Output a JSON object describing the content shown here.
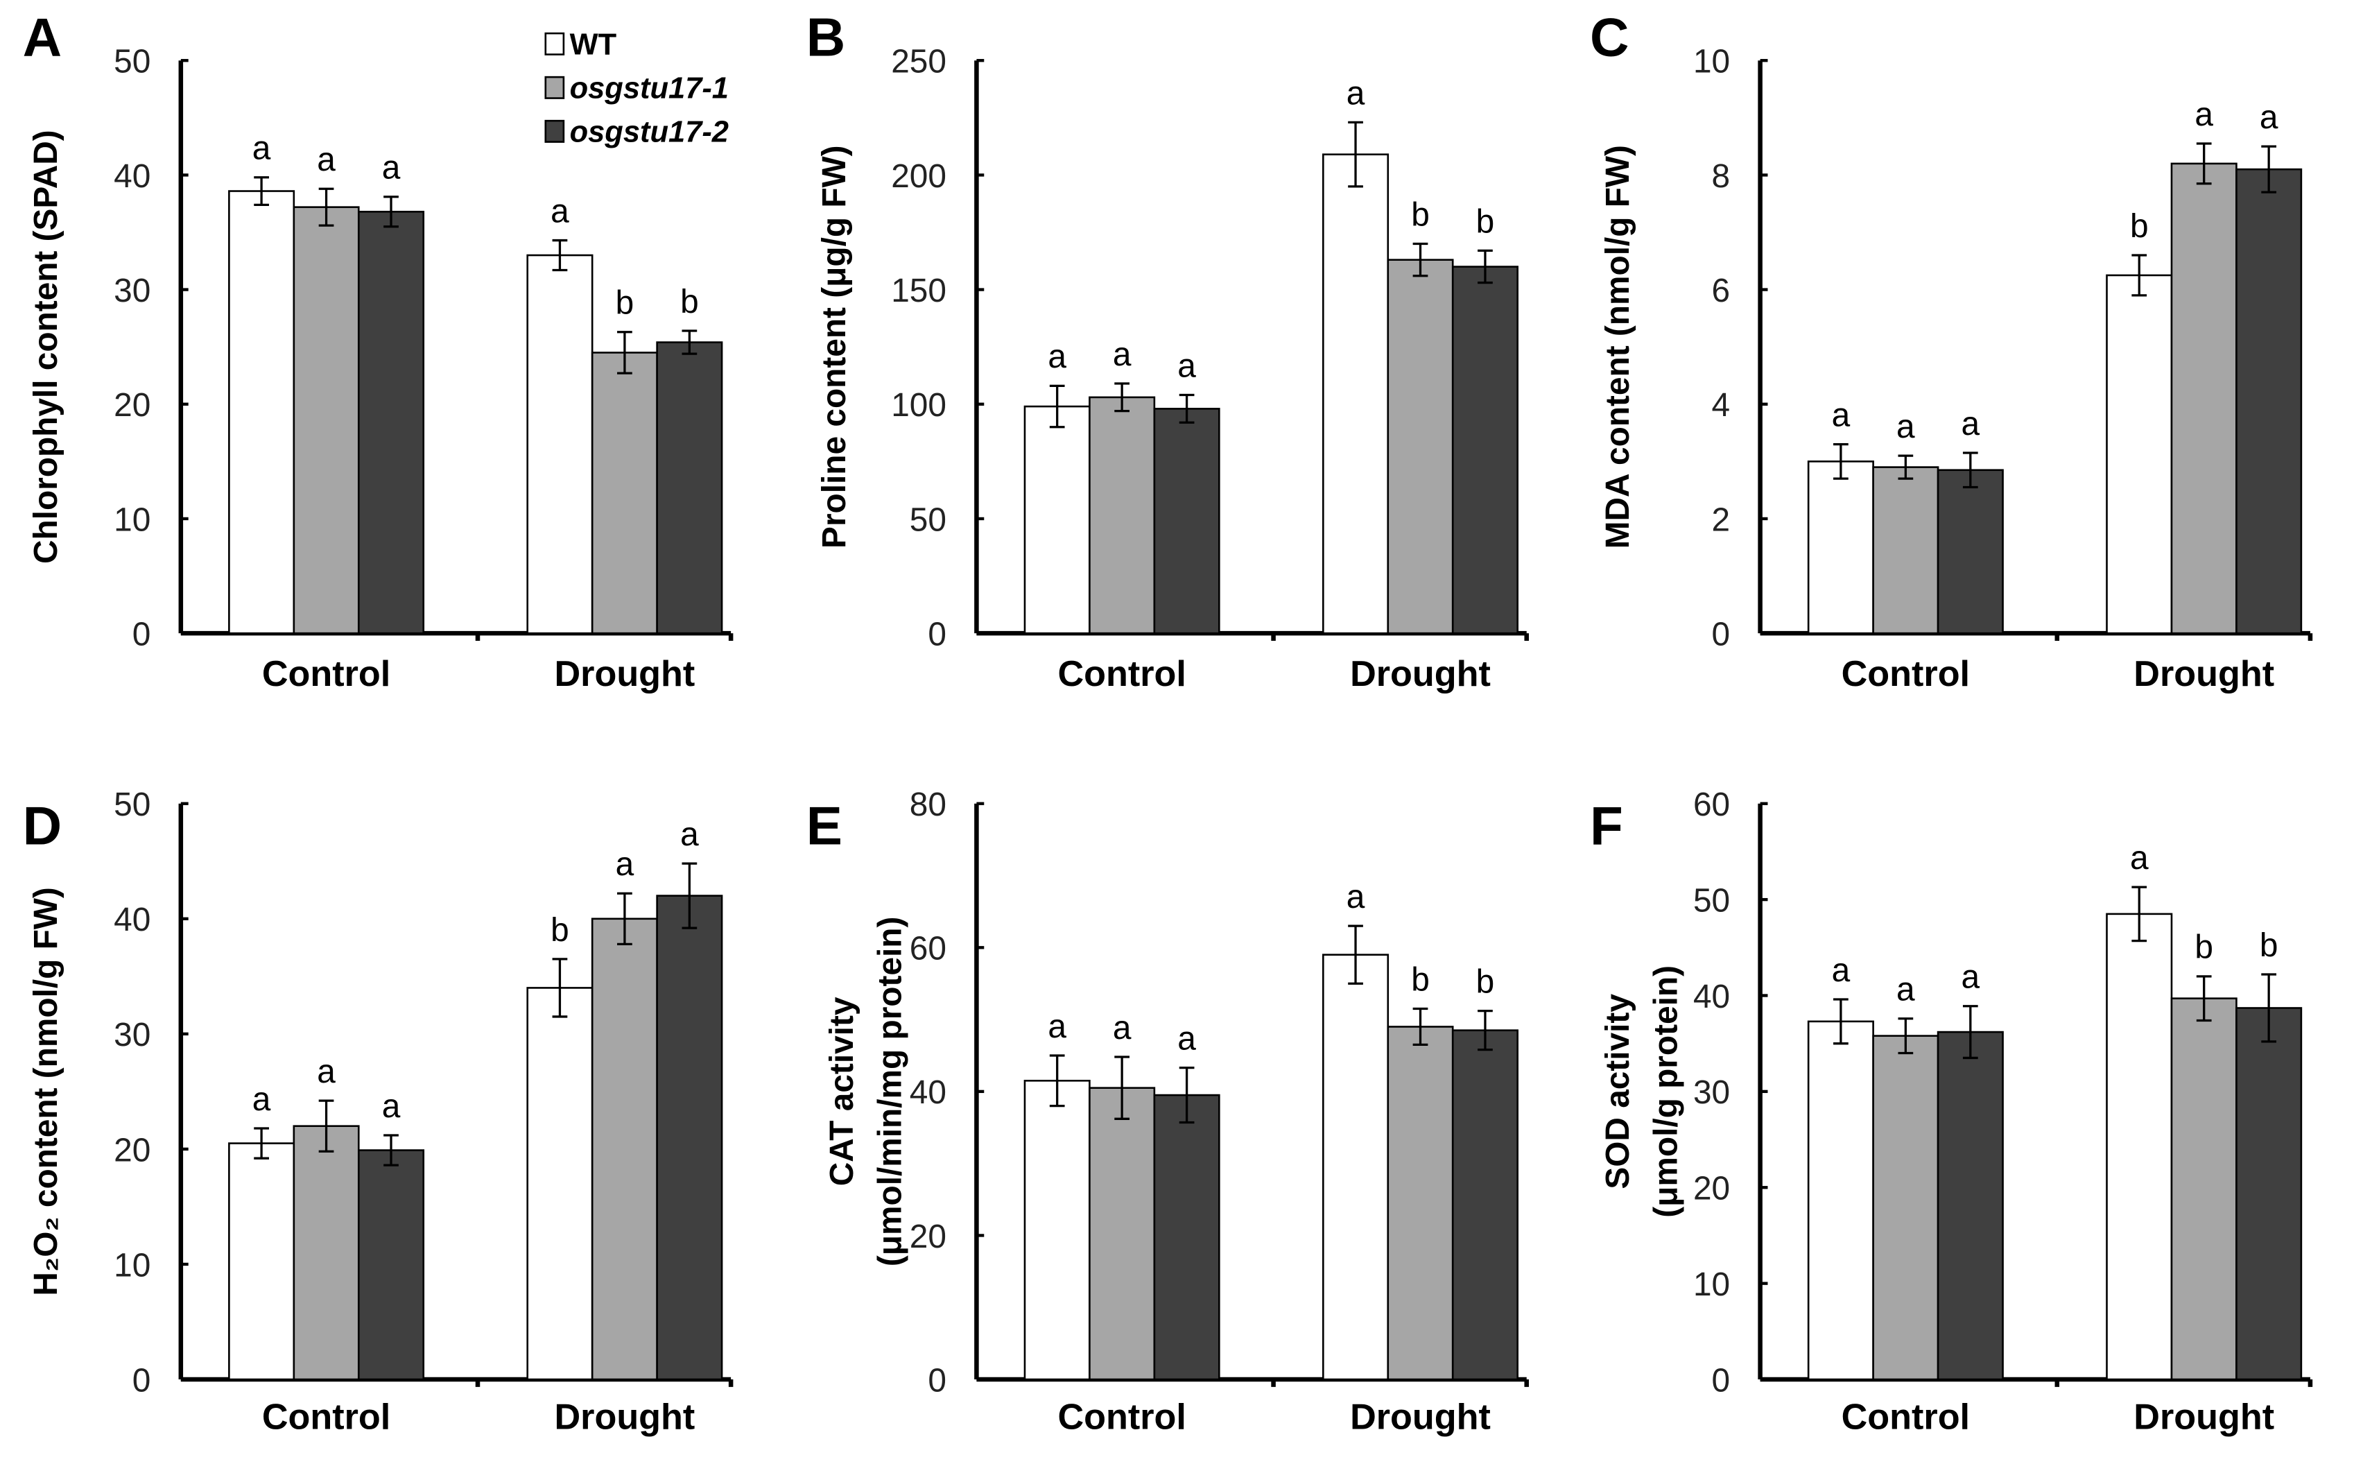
{
  "legend": [
    {
      "label": "WT",
      "color": "#ffffff"
    },
    {
      "label": "osgstu17-1",
      "color": "#a6a6a6"
    },
    {
      "label": "osgstu17-2",
      "color": "#404040"
    }
  ],
  "chart_data": [
    {
      "panel": "A",
      "type": "bar",
      "ylabel": [
        "Chlorophyll content (SPAD)"
      ],
      "ylim": [
        0,
        50
      ],
      "yticks": [
        0,
        10,
        20,
        30,
        40,
        50
      ],
      "categories": [
        "Control",
        "Drought"
      ],
      "series": [
        {
          "name": "WT",
          "values": [
            38.6,
            33.0
          ],
          "errors": [
            1.2,
            1.3
          ],
          "letters": [
            "a",
            "a"
          ]
        },
        {
          "name": "osgstu17-1",
          "values": [
            37.2,
            24.5
          ],
          "errors": [
            1.6,
            1.8
          ],
          "letters": [
            "a",
            "b"
          ]
        },
        {
          "name": "osgstu17-2",
          "values": [
            36.8,
            25.4
          ],
          "errors": [
            1.3,
            1.0
          ],
          "letters": [
            "a",
            "b"
          ]
        }
      ]
    },
    {
      "panel": "B",
      "type": "bar",
      "ylabel": [
        "Proline content (μg/g FW)"
      ],
      "ylim": [
        0,
        250
      ],
      "yticks": [
        0,
        50,
        100,
        150,
        200,
        250
      ],
      "categories": [
        "Control",
        "Drought"
      ],
      "series": [
        {
          "name": "WT",
          "values": [
            99,
            209
          ],
          "errors": [
            9,
            14
          ],
          "letters": [
            "a",
            "a"
          ]
        },
        {
          "name": "osgstu17-1",
          "values": [
            103,
            163
          ],
          "errors": [
            6,
            7
          ],
          "letters": [
            "a",
            "b"
          ]
        },
        {
          "name": "osgstu17-2",
          "values": [
            98,
            160
          ],
          "errors": [
            6,
            7
          ],
          "letters": [
            "a",
            "b"
          ]
        }
      ]
    },
    {
      "panel": "C",
      "type": "bar",
      "ylabel": [
        "MDA content (nmol/g FW)"
      ],
      "ylim": [
        0,
        10
      ],
      "yticks": [
        0,
        2,
        4,
        6,
        8,
        10
      ],
      "categories": [
        "Control",
        "Drought"
      ],
      "series": [
        {
          "name": "WT",
          "values": [
            3.0,
            6.25
          ],
          "errors": [
            0.3,
            0.35
          ],
          "letters": [
            "a",
            "b"
          ]
        },
        {
          "name": "osgstu17-1",
          "values": [
            2.9,
            8.2
          ],
          "errors": [
            0.2,
            0.35
          ],
          "letters": [
            "a",
            "a"
          ]
        },
        {
          "name": "osgstu17-2",
          "values": [
            2.85,
            8.1
          ],
          "errors": [
            0.3,
            0.4
          ],
          "letters": [
            "a",
            "a"
          ]
        }
      ]
    },
    {
      "panel": "D",
      "type": "bar",
      "ylabel": [
        "H₂O₂ content (nmol/g FW)"
      ],
      "ylim": [
        0,
        50
      ],
      "yticks": [
        0,
        10,
        20,
        30,
        40,
        50
      ],
      "categories": [
        "Control",
        "Drought"
      ],
      "series": [
        {
          "name": "WT",
          "values": [
            20.5,
            34.0
          ],
          "errors": [
            1.3,
            2.5
          ],
          "letters": [
            "a",
            "b"
          ]
        },
        {
          "name": "osgstu17-1",
          "values": [
            22.0,
            40.0
          ],
          "errors": [
            2.2,
            2.2
          ],
          "letters": [
            "a",
            "a"
          ]
        },
        {
          "name": "osgstu17-2",
          "values": [
            19.9,
            42.0
          ],
          "errors": [
            1.3,
            2.8
          ],
          "letters": [
            "a",
            "a"
          ]
        }
      ]
    },
    {
      "panel": "E",
      "type": "bar",
      "ylabel": [
        "CAT activity",
        "(μmol/min/mg protein)"
      ],
      "ylim": [
        0,
        80
      ],
      "yticks": [
        0,
        20,
        40,
        60,
        80
      ],
      "categories": [
        "Control",
        "Drought"
      ],
      "series": [
        {
          "name": "WT",
          "values": [
            41.5,
            59.0
          ],
          "errors": [
            3.5,
            4.0
          ],
          "letters": [
            "a",
            "a"
          ]
        },
        {
          "name": "osgstu17-1",
          "values": [
            40.5,
            49.0
          ],
          "errors": [
            4.3,
            2.5
          ],
          "letters": [
            "a",
            "b"
          ]
        },
        {
          "name": "osgstu17-2",
          "values": [
            39.5,
            48.5
          ],
          "errors": [
            3.8,
            2.7
          ],
          "letters": [
            "a",
            "b"
          ]
        }
      ]
    },
    {
      "panel": "F",
      "type": "bar",
      "ylabel": [
        "SOD activity",
        "(μmol/g protein)"
      ],
      "ylim": [
        0,
        60
      ],
      "yticks": [
        0,
        10,
        20,
        30,
        40,
        50,
        60
      ],
      "categories": [
        "Control",
        "Drought"
      ],
      "series": [
        {
          "name": "WT",
          "values": [
            37.3,
            48.5
          ],
          "errors": [
            2.3,
            2.8
          ],
          "letters": [
            "a",
            "a"
          ]
        },
        {
          "name": "osgstu17-1",
          "values": [
            35.8,
            39.7
          ],
          "errors": [
            1.8,
            2.3
          ],
          "letters": [
            "a",
            "b"
          ]
        },
        {
          "name": "osgstu17-2",
          "values": [
            36.2,
            38.7
          ],
          "errors": [
            2.7,
            3.5
          ],
          "letters": [
            "a",
            "b"
          ]
        }
      ]
    }
  ]
}
